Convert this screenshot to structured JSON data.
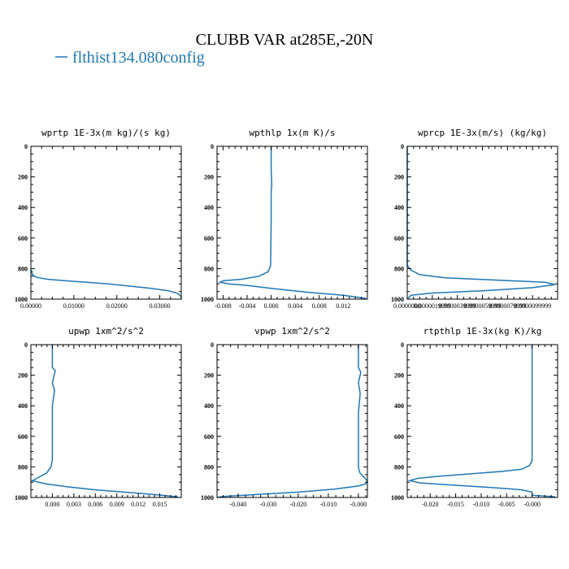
{
  "figure": {
    "title": "CLUBB VAR at285E,-20N",
    "legend": "flthist134.080config"
  },
  "colors": {
    "line": "#1f77b4",
    "axes": "#000000"
  },
  "chart_data": [
    {
      "type": "line",
      "title": "wprtp  1E-3x(m kg)/(s kg)",
      "series_name": "flthist134.080config",
      "xlim": [
        0.0,
        0.035
      ],
      "ylim": [
        1000,
        0
      ],
      "xticks": [
        0.0,
        0.01,
        0.02,
        0.03
      ],
      "xtick_labels": [
        "0.00000",
        "0.01000",
        "0.02000",
        "0.03000"
      ],
      "yticks": [
        0,
        200,
        400,
        600,
        800,
        1000
      ],
      "ytick_labels": [
        "0",
        "200",
        "400",
        "600",
        "800",
        "1000"
      ],
      "x": [
        0.0002,
        0.0003,
        0.0008,
        0.0018,
        0.004,
        0.008,
        0.013,
        0.018,
        0.023,
        0.028,
        0.032,
        0.0342,
        0.035,
        0.035
      ],
      "y": [
        810,
        835,
        850,
        860,
        870,
        880,
        890,
        900,
        915,
        930,
        945,
        962,
        985,
        1000
      ]
    },
    {
      "type": "line",
      "title": "wpthlp  1x(m K)/s",
      "series_name": "flthist134.080config",
      "xlim": [
        -0.009,
        0.016
      ],
      "ylim": [
        1000,
        0
      ],
      "xticks": [
        -0.008,
        -0.004,
        0.0,
        0.004,
        0.008,
        0.012
      ],
      "xtick_labels": [
        "-0.008",
        "-0.004",
        "0.000",
        "0.004",
        "0.008",
        "0.012"
      ],
      "yticks": [
        0,
        200,
        400,
        600,
        800,
        1000
      ],
      "ytick_labels": [
        "0",
        "200",
        "400",
        "600",
        "800",
        "1000"
      ],
      "x": [
        0.0,
        0.0,
        0.0001,
        0.0,
        0.0,
        -0.0001,
        -0.0005,
        -0.002,
        -0.005,
        -0.008,
        -0.0085,
        -0.007,
        -0.004,
        0.0,
        0.006,
        0.012,
        0.0158
      ],
      "y": [
        0,
        150,
        250,
        300,
        500,
        780,
        820,
        850,
        870,
        880,
        890,
        900,
        910,
        930,
        955,
        975,
        995
      ]
    },
    {
      "type": "line",
      "title": "wprcp  1E-3x(m/s) (kg/kg)",
      "series_name": "flthist134.080config",
      "xlim": [
        0.0,
        1.2e-05
      ],
      "ylim": [
        1000,
        0
      ],
      "xticks": [
        0.0,
        2e-06,
        4e-06,
        6e-06,
        8e-06,
        1e-05
      ],
      "xtick_labels": [
        "0.0000000",
        "0.0000019999",
        "0.0000039999",
        "0.0000059999",
        "0.0000079999",
        "0.0000099999"
      ],
      "yticks": [
        0,
        200,
        400,
        600,
        800,
        1000
      ],
      "ytick_labels": [
        "0",
        "200",
        "400",
        "600",
        "800",
        "1000"
      ],
      "x": [
        0.0,
        0.0,
        3e-07,
        1e-06,
        3e-06,
        7e-06,
        1.1e-05,
        1.18e-05,
        1e-05,
        6e-06,
        2e-06,
        3e-07,
        0.0
      ],
      "y": [
        0,
        780,
        810,
        840,
        860,
        875,
        890,
        905,
        925,
        945,
        960,
        975,
        1000
      ]
    },
    {
      "type": "line",
      "title": "upwp  1xm^2/s^2",
      "series_name": "flthist134.080config",
      "xlim": [
        -0.003,
        0.018
      ],
      "ylim": [
        1000,
        0
      ],
      "xticks": [
        0.0,
        0.003,
        0.006,
        0.009,
        0.012,
        0.015
      ],
      "xtick_labels": [
        "0.000",
        "0.003",
        "0.006",
        "0.009",
        "0.012",
        "0.015"
      ],
      "yticks": [
        0,
        200,
        400,
        600,
        800,
        1000
      ],
      "ytick_labels": [
        "0",
        "200",
        "400",
        "600",
        "800",
        "1000"
      ],
      "x": [
        0.0,
        0.0,
        0.0004,
        0.0,
        0.0003,
        0.0,
        0.0,
        -0.0002,
        -0.0008,
        -0.002,
        -0.0028,
        -0.001,
        0.002,
        0.006,
        0.01,
        0.014,
        0.0175
      ],
      "y": [
        0,
        150,
        170,
        250,
        300,
        400,
        750,
        800,
        840,
        870,
        890,
        910,
        930,
        950,
        965,
        980,
        995
      ]
    },
    {
      "type": "line",
      "title": "vpwp  1xm^2/s^2",
      "series_name": "flthist134.080config",
      "xlim": [
        -0.047,
        0.003
      ],
      "ylim": [
        1000,
        0
      ],
      "xticks": [
        -0.04,
        -0.03,
        -0.02,
        -0.01,
        0.0
      ],
      "xtick_labels": [
        "-0.040",
        "-0.030",
        "-0.020",
        "-0.010",
        "-0.000"
      ],
      "yticks": [
        0,
        200,
        400,
        600,
        800,
        1000
      ],
      "ytick_labels": [
        "0",
        "200",
        "400",
        "600",
        "800",
        "1000"
      ],
      "x": [
        0.0,
        0.0,
        0.0008,
        0.0,
        0.0006,
        0.0,
        0.0,
        0.0005,
        0.0015,
        0.0025,
        0.003,
        0.0025,
        0.0,
        -0.008,
        -0.02,
        -0.035,
        -0.045,
        -0.047
      ],
      "y": [
        0,
        150,
        180,
        250,
        320,
        450,
        800,
        840,
        860,
        880,
        895,
        910,
        925,
        945,
        965,
        982,
        993,
        1000
      ]
    },
    {
      "type": "line",
      "title": "rtpthlp  1E-3x(kg K)/kg",
      "series_name": "flthist134.080config",
      "xlim": [
        -0.0245,
        0.005
      ],
      "ylim": [
        1000,
        0
      ],
      "xticks": [
        -0.02,
        -0.015,
        -0.01,
        -0.005,
        0.0
      ],
      "xtick_labels": [
        "-0.020",
        "-0.015",
        "-0.010",
        "-0.005",
        "-0.000"
      ],
      "yticks": [
        0,
        200,
        400,
        600,
        800,
        1000
      ],
      "ytick_labels": [
        "0",
        "200",
        "400",
        "600",
        "800",
        "1000"
      ],
      "x": [
        0.0,
        0.0,
        -0.0005,
        -0.002,
        -0.006,
        -0.012,
        -0.018,
        -0.0225,
        -0.024,
        -0.022,
        -0.015,
        -0.008,
        -0.002,
        0.0,
        0.0,
        0.0045
      ],
      "y": [
        0,
        760,
        790,
        815,
        830,
        845,
        860,
        875,
        890,
        905,
        920,
        935,
        950,
        965,
        985,
        995
      ]
    }
  ]
}
